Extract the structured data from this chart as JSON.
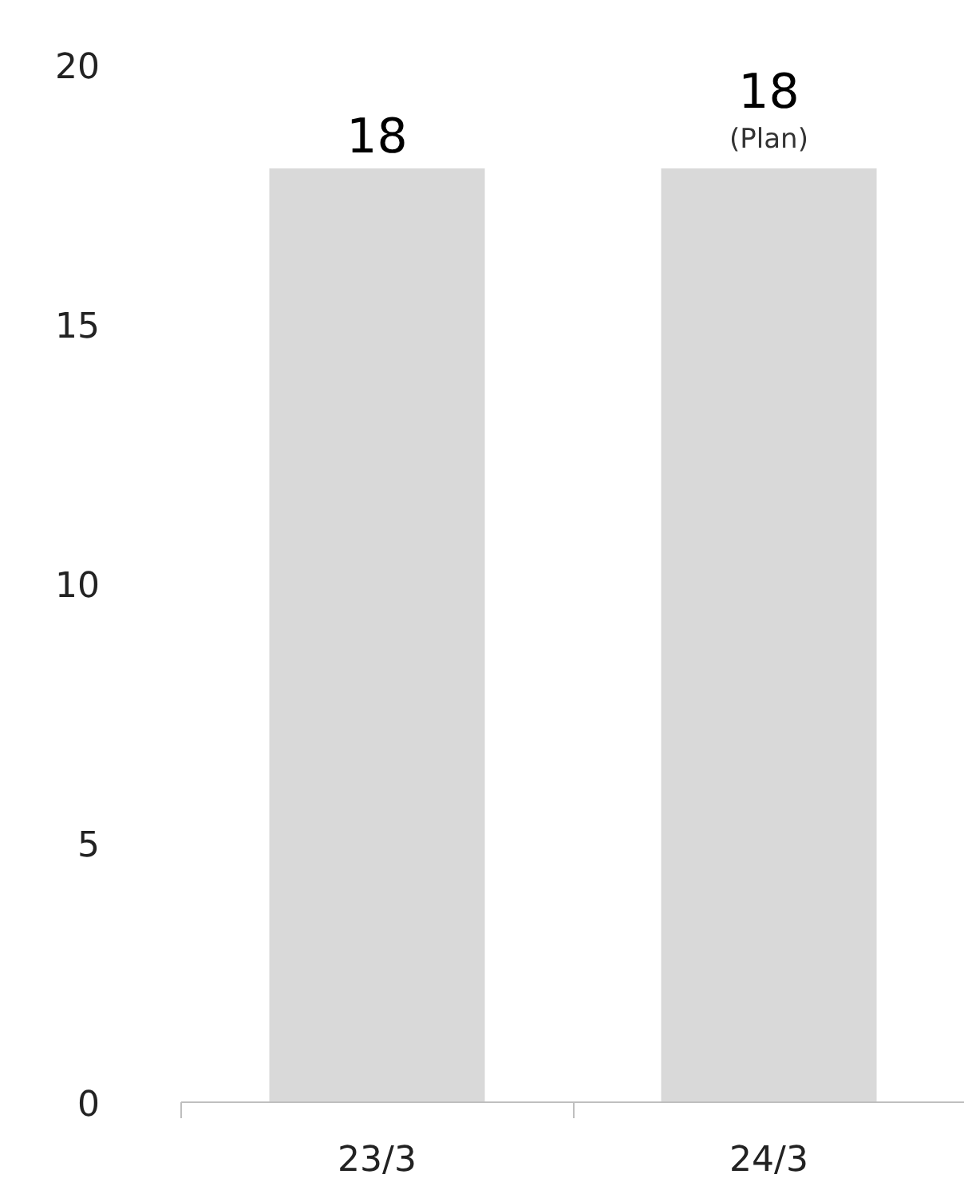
{
  "chart_data": {
    "type": "bar",
    "categories": [
      "23/3",
      "24/3"
    ],
    "values": [
      18,
      18
    ],
    "color": "#d9d9d9",
    "value_labels": [
      "18",
      "18"
    ],
    "annotations": [
      {
        "text": "(Plan)",
        "x": "24/3",
        "y": 18
      }
    ],
    "ylim": [
      0,
      20
    ],
    "yticks": [
      0,
      5,
      10,
      15,
      20
    ],
    "grid": false
  }
}
